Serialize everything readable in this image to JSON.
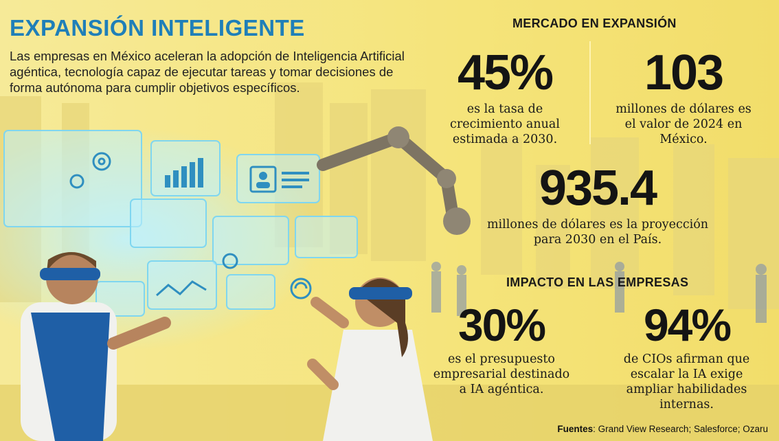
{
  "title": "EXPANSIÓN INTELIGENTE",
  "intro": "Las empresas en México aceleran la adopción de Inteligencia Artificial agéntica, tecnología capaz de ejecutar tareas y tomar decisiones de forma autónoma para cumplir objetivos específicos.",
  "market": {
    "heading": "MERCADO EN EXPANSIÓN",
    "stats": [
      {
        "value": "45%",
        "desc": "es la tasa de crecimiento anual estimada a 2030."
      },
      {
        "value": "103",
        "desc": "millones de dólares es el valor de 2024 en México."
      },
      {
        "value": "935.4",
        "desc": "millones de dólares es la proyección para 2030 en el País."
      }
    ]
  },
  "impact": {
    "heading": "IMPACTO EN LAS EMPRESAS",
    "stats": [
      {
        "value": "30%",
        "desc": "es el presupuesto empresarial destinado a IA agéntica."
      },
      {
        "value": "94%",
        "desc": "de CIOs afirman que escalar la IA exige ampliar habilidades internas."
      }
    ]
  },
  "sources": {
    "label": "Fuentes",
    "text": ": Grand View Research; Salesforce; Ozaru"
  },
  "colors": {
    "background": "#f3e27a",
    "title": "#1f7fb8",
    "hologram": "#7fd6f0"
  },
  "icons": [
    "gear-icon",
    "bar-chart-icon",
    "user-card-icon",
    "wifi-icon",
    "robot-arm"
  ]
}
